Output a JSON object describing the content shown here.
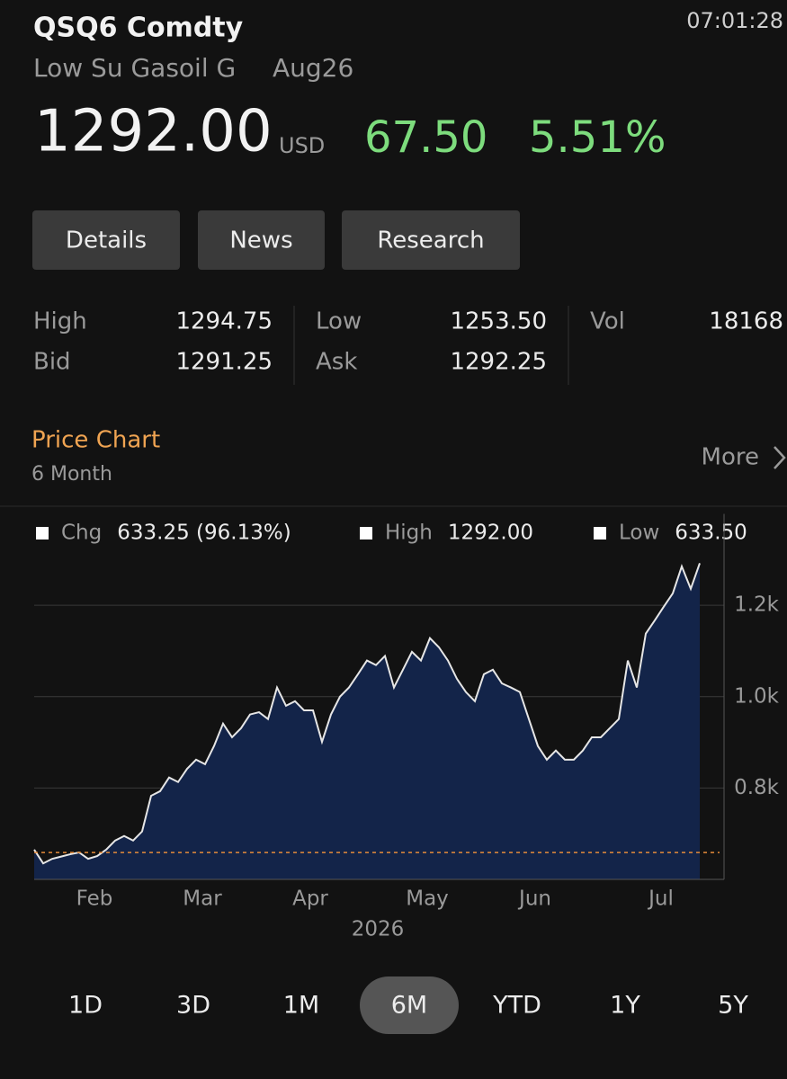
{
  "header": {
    "ticker": "QSQ6 Comdty",
    "time": "07:01:28",
    "name": "Low Su Gasoil G",
    "contract": "Aug26",
    "price": "1292.00",
    "currency": "USD",
    "change": "67.50",
    "change_pct": "5.51%"
  },
  "tabs": [
    "Details",
    "News",
    "Research"
  ],
  "stats": [
    [
      {
        "label": "High",
        "value": "1294.75"
      },
      {
        "label": "Low",
        "value": "1253.50"
      },
      {
        "label": "Vol",
        "value": "18168"
      }
    ],
    [
      {
        "label": "Bid",
        "value": "1291.25"
      },
      {
        "label": "Ask",
        "value": "1292.25"
      }
    ]
  ],
  "section": {
    "title": "Price Chart",
    "subtitle": "6 Month",
    "more": "More"
  },
  "chart_data": {
    "type": "area",
    "summary": [
      {
        "label": "Chg",
        "value": "633.25 (96.13%)"
      },
      {
        "label": "High",
        "value": "1292.00"
      },
      {
        "label": "Low",
        "value": "633.50"
      }
    ],
    "x_label": "2026",
    "categories": [
      null,
      null,
      null,
      null,
      null,
      null,
      null,
      "Feb",
      null,
      null,
      null,
      null,
      null,
      null,
      null,
      null,
      null,
      null,
      null,
      "Mar",
      null,
      null,
      null,
      null,
      null,
      null,
      null,
      null,
      null,
      null,
      null,
      "Apr",
      null,
      null,
      null,
      null,
      null,
      null,
      null,
      null,
      null,
      null,
      null,
      null,
      "May",
      null,
      null,
      null,
      null,
      null,
      null,
      null,
      null,
      null,
      null,
      null,
      "Jun",
      null,
      null,
      null,
      null,
      null,
      null,
      null,
      null,
      null,
      null,
      null,
      null,
      null,
      "Jul",
      null,
      null,
      null,
      null
    ],
    "series": [
      {
        "color": "#e6e6e6",
        "fill": "#132449",
        "values": [
          665,
          635,
          645,
          650,
          655,
          659,
          645,
          651,
          665,
          685,
          695,
          685,
          705,
          783,
          793,
          823,
          813,
          842,
          862,
          852,
          892,
          941,
          911,
          931,
          961,
          966,
          951,
          1020,
          980,
          990,
          970,
          970,
          901,
          961,
          1000,
          1020,
          1049,
          1079,
          1069,
          1089,
          1020,
          1059,
          1098,
          1079,
          1128,
          1108,
          1079,
          1039,
          1010,
          990,
          1049,
          1059,
          1029,
          1020,
          1010,
          951,
          892,
          862,
          882,
          862,
          862,
          882,
          911,
          911,
          931,
          951,
          1079,
          1020,
          1138,
          1167,
          1197,
          1226,
          1285,
          1236,
          1292
        ]
      }
    ],
    "baseline": 658.75,
    "ylim": [
      600,
      1400
    ],
    "yticks": [
      {
        "value": 800,
        "label": "0.8k"
      },
      {
        "value": 1000,
        "label": "1.0k"
      },
      {
        "value": 1200,
        "label": "1.2k"
      }
    ],
    "grid": true
  },
  "ranges": [
    "1D",
    "3D",
    "1M",
    "6M",
    "YTD",
    "1Y",
    "5Y"
  ],
  "active_range": "6M"
}
